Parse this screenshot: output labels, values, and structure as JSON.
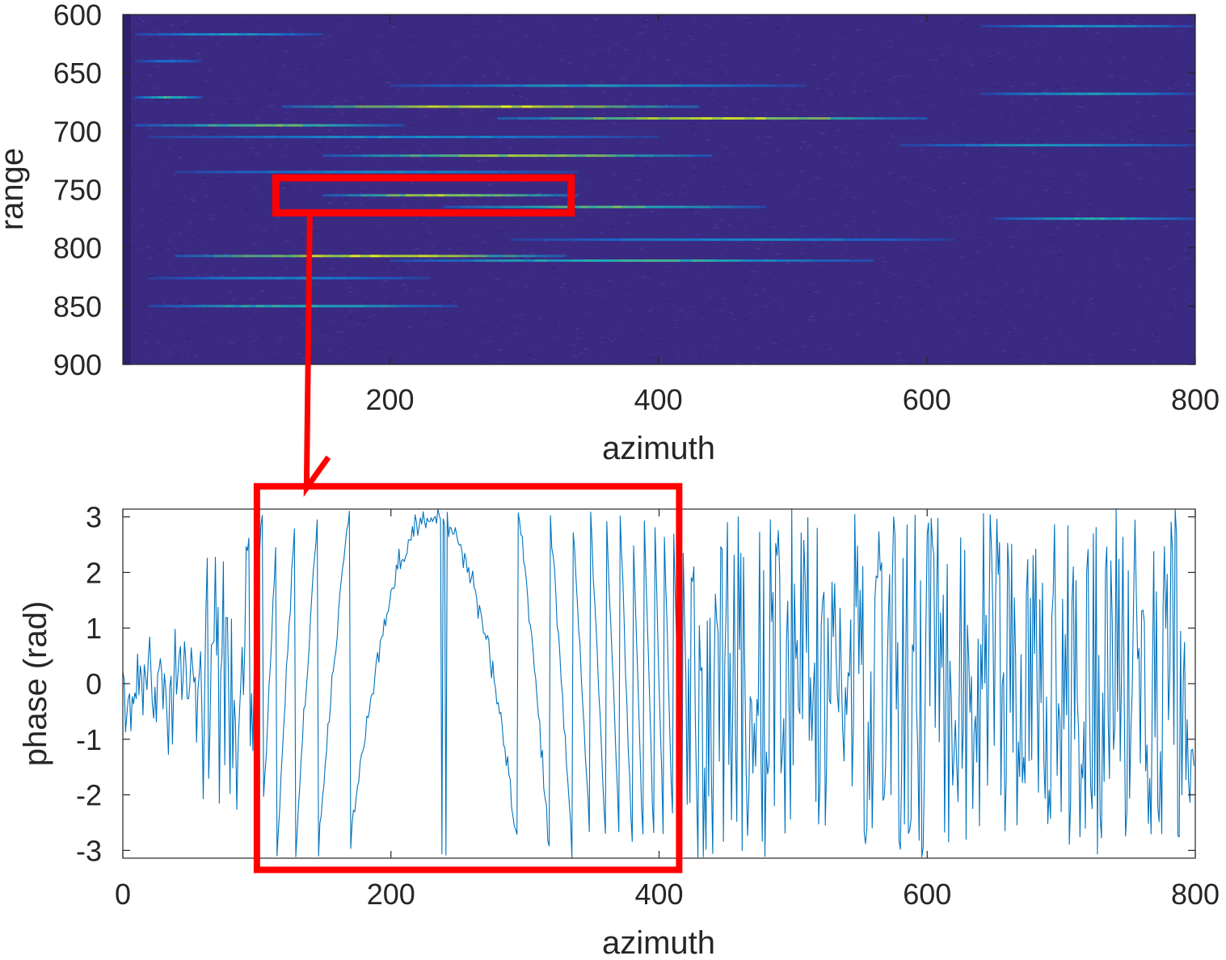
{
  "chart_data": [
    {
      "type": "heatmap",
      "xlabel": "azimuth",
      "ylabel": "range",
      "xlim": [
        1,
        800
      ],
      "ylim": [
        600,
        900
      ],
      "y_reversed": true,
      "xticks": [
        "200",
        "400",
        "600",
        "800"
      ],
      "yticks": [
        "600",
        "650",
        "700",
        "750",
        "800",
        "850",
        "900"
      ],
      "colormap": "parula",
      "background_color": "#3b2a82",
      "streaks": [
        {
          "range": 617,
          "start": 10,
          "end": 150,
          "intensity": 0.45
        },
        {
          "range": 640,
          "start": 10,
          "end": 60,
          "intensity": 0.3
        },
        {
          "range": 661,
          "start": 200,
          "end": 510,
          "intensity": 0.45
        },
        {
          "range": 671,
          "start": 10,
          "end": 60,
          "intensity": 0.6
        },
        {
          "range": 679,
          "start": 120,
          "end": 430,
          "intensity": 0.95
        },
        {
          "range": 689,
          "start": 280,
          "end": 600,
          "intensity": 0.9
        },
        {
          "range": 695,
          "start": 10,
          "end": 210,
          "intensity": 0.7
        },
        {
          "range": 705,
          "start": 20,
          "end": 400,
          "intensity": 0.4
        },
        {
          "range": 712,
          "start": 580,
          "end": 800,
          "intensity": 0.45
        },
        {
          "range": 721,
          "start": 150,
          "end": 440,
          "intensity": 0.8
        },
        {
          "range": 735,
          "start": 40,
          "end": 340,
          "intensity": 0.4
        },
        {
          "range": 755,
          "start": 150,
          "end": 340,
          "intensity": 0.85
        },
        {
          "range": 765,
          "start": 240,
          "end": 480,
          "intensity": 0.7
        },
        {
          "range": 775,
          "start": 650,
          "end": 800,
          "intensity": 0.55
        },
        {
          "range": 793,
          "start": 290,
          "end": 620,
          "intensity": 0.4
        },
        {
          "range": 807,
          "start": 40,
          "end": 330,
          "intensity": 0.95
        },
        {
          "range": 811,
          "start": 200,
          "end": 560,
          "intensity": 0.6
        },
        {
          "range": 826,
          "start": 20,
          "end": 230,
          "intensity": 0.4
        },
        {
          "range": 850,
          "start": 20,
          "end": 250,
          "intensity": 0.6
        },
        {
          "range": 610,
          "start": 640,
          "end": 800,
          "intensity": 0.45
        },
        {
          "range": 668,
          "start": 640,
          "end": 800,
          "intensity": 0.5
        }
      ],
      "highlight_box": {
        "x": [
          115,
          335
        ],
        "y": [
          740,
          770
        ],
        "color": "#ff0000"
      }
    },
    {
      "type": "line",
      "xlabel": "azimuth",
      "ylabel": "phase (rad)",
      "xlim": [
        0,
        800
      ],
      "ylim": [
        -3.14,
        3.14
      ],
      "xticks": [
        "0",
        "200",
        "400",
        "600",
        "800"
      ],
      "yticks": [
        "3",
        "2",
        "1",
        "0",
        "-1",
        "-2",
        "-3"
      ],
      "line_color": "#0072bd",
      "series": [
        {
          "model": "wrapped phase of a quadratic chirp plus noise",
          "samples": 800,
          "phase_center_azimuth": 232,
          "phase_peak_rad": 3.0,
          "chirp_rate": 0.0012,
          "chirp_region": [
            100,
            420
          ],
          "noise_std_outside": 0.7,
          "noise_std_inside": 0.12
        }
      ],
      "highlight_box": {
        "x": [
          100,
          415
        ],
        "y": [
          -3.35,
          3.55
        ],
        "color": "#ff0000"
      }
    }
  ],
  "connector": {
    "color": "#ff0000"
  }
}
